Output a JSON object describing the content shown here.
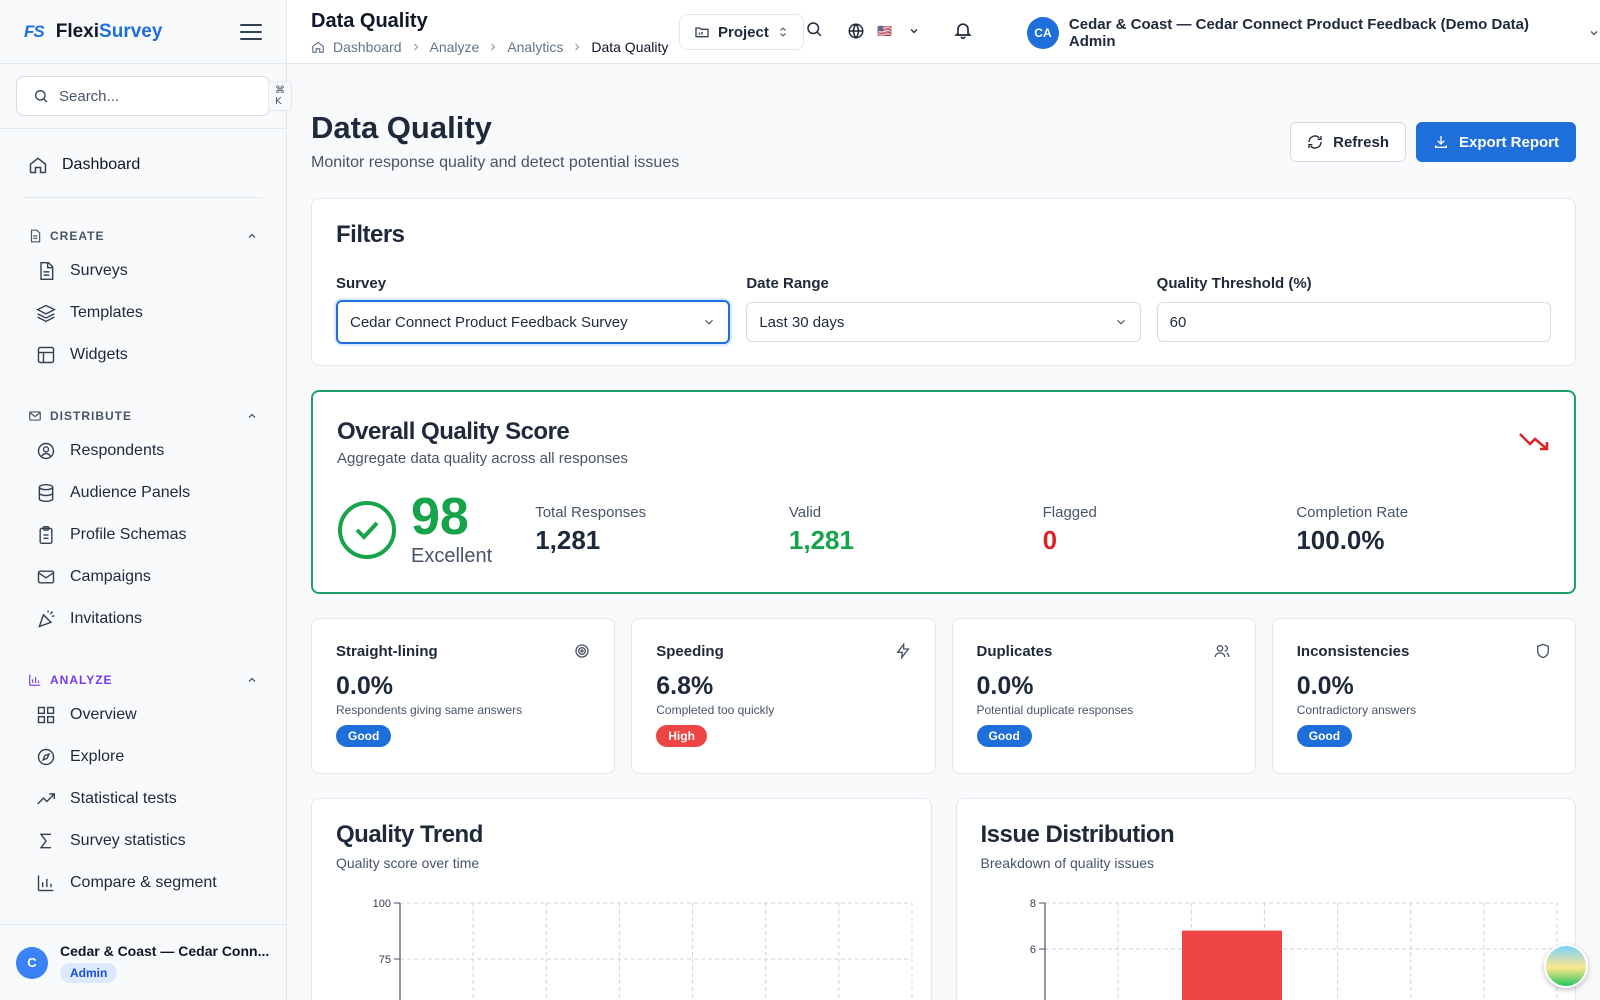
{
  "brand": {
    "mark": "FS",
    "name_a": "Flexi",
    "name_b": "Survey"
  },
  "search": {
    "placeholder": "Search...",
    "shortcut": "⌘ K"
  },
  "nav": {
    "dashboard": "Dashboard",
    "create": {
      "title": "CREATE",
      "items": [
        "Surveys",
        "Templates",
        "Widgets"
      ]
    },
    "distribute": {
      "title": "DISTRIBUTE",
      "items": [
        "Respondents",
        "Audience Panels",
        "Profile Schemas",
        "Campaigns",
        "Invitations"
      ]
    },
    "analyze": {
      "title": "ANALYZE",
      "items": [
        "Overview",
        "Explore",
        "Statistical tests",
        "Survey statistics",
        "Compare & segment"
      ]
    }
  },
  "footer": {
    "avatar": "C",
    "name": "Cedar & Coast — Cedar Conn...",
    "role": "Admin"
  },
  "topbar": {
    "title": "Data Quality",
    "breadcrumb": [
      "Dashboard",
      "Analyze",
      "Analytics",
      "Data Quality"
    ],
    "project_label": "Project",
    "user_initials": "CA",
    "user_name": "Cedar & Coast — Cedar Connect Product Feedback (Demo Data) Admin",
    "flag": "🇺🇸"
  },
  "page": {
    "title": "Data Quality",
    "subtitle": "Monitor response quality and detect potential issues",
    "refresh_label": "Refresh",
    "export_label": "Export Report"
  },
  "filters": {
    "title": "Filters",
    "survey_label": "Survey",
    "survey_value": "Cedar Connect Product Feedback Survey",
    "date_label": "Date Range",
    "date_value": "Last 30 days",
    "threshold_label": "Quality Threshold (%)",
    "threshold_value": "60"
  },
  "overall": {
    "title": "Overall Quality Score",
    "subtitle": "Aggregate data quality across all responses",
    "score": "98",
    "score_label": "Excellent",
    "stats": [
      {
        "label": "Total Responses",
        "value": "1,281",
        "tone": "normal"
      },
      {
        "label": "Valid",
        "value": "1,281",
        "tone": "green"
      },
      {
        "label": "Flagged",
        "value": "0",
        "tone": "red"
      },
      {
        "label": "Completion Rate",
        "value": "100.0%",
        "tone": "normal"
      }
    ]
  },
  "metrics": [
    {
      "title": "Straight-lining",
      "icon": "target-icon",
      "value": "0.0%",
      "desc": "Respondents giving same answers",
      "badge": "Good",
      "tone": "good"
    },
    {
      "title": "Speeding",
      "icon": "lightning-icon",
      "value": "6.8%",
      "desc": "Completed too quickly",
      "badge": "High",
      "tone": "high"
    },
    {
      "title": "Duplicates",
      "icon": "users-icon",
      "value": "0.0%",
      "desc": "Potential duplicate responses",
      "badge": "Good",
      "tone": "good"
    },
    {
      "title": "Inconsistencies",
      "icon": "shield-icon",
      "value": "0.0%",
      "desc": "Contradictory answers",
      "badge": "Good",
      "tone": "good"
    }
  ],
  "charts": {
    "trend": {
      "title": "Quality Trend",
      "subtitle": "Quality score over time"
    },
    "issues": {
      "title": "Issue Distribution",
      "subtitle": "Breakdown of quality issues"
    }
  },
  "chart_data": [
    {
      "type": "line",
      "title": "Quality Trend",
      "y_ticks": [
        100,
        75
      ],
      "ylim": [
        0,
        100
      ],
      "grid": true,
      "series": []
    },
    {
      "type": "bar",
      "title": "Issue Distribution",
      "y_ticks": [
        8,
        6
      ],
      "ylim": [
        0,
        8
      ],
      "grid": true,
      "categories": [
        ""
      ],
      "values": [
        6.8
      ]
    }
  ],
  "colors": {
    "accent": "#1e6fd9",
    "good": "#16a34a",
    "bad": "#dc2626",
    "bar": "#ef4444"
  }
}
